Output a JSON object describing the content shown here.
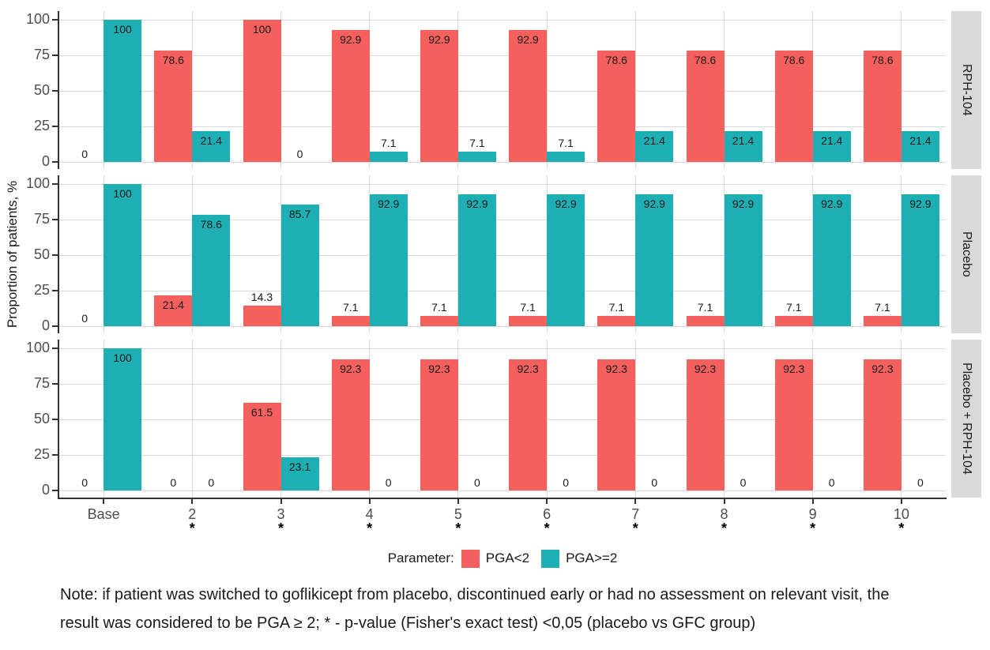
{
  "figure": {
    "note": {
      "line1": "Note: if patient was switched to goflikicept from placebo, discontinued early or had no assessment on relevant visit, the",
      "line2": "result was considered to be PGA ≥ 2; * - p-value (Fisher's exact test) <0,05 (placebo vs GFC group)"
    }
  },
  "chart_data": {
    "type": "bar",
    "title": "",
    "xlabel": "",
    "ylabel": "Proportion of patients, %",
    "ylim": [
      0,
      100
    ],
    "y_ticks": [
      0,
      25,
      50,
      75,
      100
    ],
    "grid": true,
    "legend_position": "bottom",
    "legend_title": "Parameter:",
    "categories": [
      "Base",
      "2",
      "3",
      "4",
      "5",
      "6",
      "7",
      "8",
      "9",
      "10"
    ],
    "category_asterisks": [
      false,
      true,
      true,
      true,
      true,
      true,
      true,
      true,
      true,
      true
    ],
    "legend": [
      {
        "label": "PGA<2",
        "color": "#F3605D"
      },
      {
        "label": "PGA>=2",
        "color": "#1EAFB4"
      }
    ],
    "facets": [
      {
        "label": "RPH-104",
        "series": [
          {
            "name": "PGA<2",
            "color": "#F3605D",
            "values": [
              0,
              78.6,
              100,
              92.9,
              92.9,
              92.9,
              78.6,
              78.6,
              78.6,
              78.6
            ]
          },
          {
            "name": "PGA>=2",
            "color": "#1EAFB4",
            "values": [
              100,
              21.4,
              0,
              7.1,
              7.1,
              7.1,
              21.4,
              21.4,
              21.4,
              21.4
            ]
          }
        ]
      },
      {
        "label": "Placebo",
        "series": [
          {
            "name": "PGA<2",
            "color": "#F3605D",
            "values": [
              0,
              21.4,
              14.3,
              7.1,
              7.1,
              7.1,
              7.1,
              7.1,
              7.1,
              7.1
            ]
          },
          {
            "name": "PGA>=2",
            "color": "#1EAFB4",
            "values": [
              100,
              78.6,
              85.7,
              92.9,
              92.9,
              92.9,
              92.9,
              92.9,
              92.9,
              92.9
            ]
          }
        ]
      },
      {
        "label": "Placebo + RPH-104",
        "series": [
          {
            "name": "PGA<2",
            "color": "#F3605D",
            "values": [
              0,
              0,
              61.5,
              92.3,
              92.3,
              92.3,
              92.3,
              92.3,
              92.3,
              92.3
            ]
          },
          {
            "name": "PGA>=2",
            "color": "#1EAFB4",
            "values": [
              100,
              0,
              23.1,
              0,
              0,
              0,
              0,
              0,
              0,
              0
            ]
          }
        ]
      }
    ],
    "colors": {
      "PGA<2": "#F3605D",
      "PGA>=2": "#1EAFB4",
      "grid": "#d9d9d9",
      "axis": "#333333",
      "axis_text": "#4d4d4d",
      "value_text": "#1a1a1a",
      "strip_bg": "#d9d9d9",
      "strip_text": "#1a1a1a"
    }
  }
}
